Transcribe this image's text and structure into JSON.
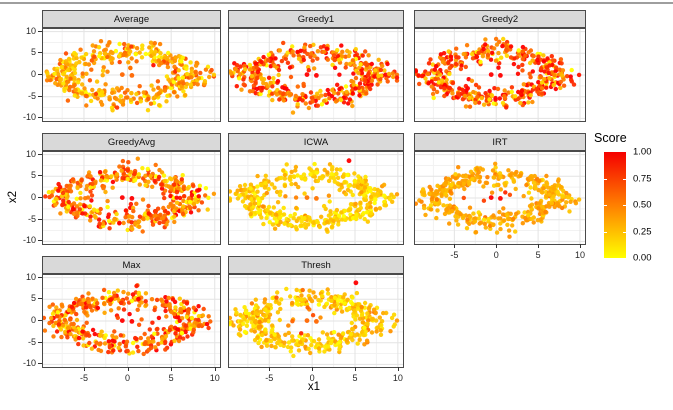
{
  "chart_data": {
    "type": "scatter",
    "faceted": true,
    "description": "Eight faceted scatter plots of an elliptical ring point cloud centered at the origin, points colored by Score (yellow=0 to red=1), ggplot2 style with grey facet strips",
    "facet_labels": [
      "Average",
      "Greedy1",
      "Greedy2",
      "GreedyAvg",
      "ICWA",
      "IRT",
      "Max",
      "Thresh"
    ],
    "x": {
      "label": "x1",
      "domain": [
        -9.7,
        10.6
      ],
      "ticks": [
        -5,
        0,
        5,
        10
      ],
      "minor_ticks": [
        -7.5,
        -2.5,
        2.5,
        7.5
      ]
    },
    "y": {
      "label": "x2",
      "domain": [
        -10.6,
        10.6
      ],
      "ticks": [
        10,
        5,
        0,
        -5,
        -10
      ],
      "minor_ticks": [
        7.5,
        2.5,
        -2.5,
        -7.5
      ]
    },
    "legend": {
      "title": "Score",
      "tick_labels": [
        "1.00",
        "0.75",
        "0.50",
        "0.25",
        "0.00"
      ],
      "tick_values": [
        1.0,
        0.75,
        0.5,
        0.25,
        0.0
      ],
      "high_color": "#ff0000",
      "low_color": "#ffff00",
      "position": "right"
    },
    "point_cloud": {
      "shape": "elliptical-ring",
      "center": [
        0,
        0
      ],
      "radius_x": 7.2,
      "radius_y": 5.3,
      "noise_sigma": 1.35,
      "points_per_facet": 430,
      "inner_sparse_points": 7,
      "center_pair": [
        [
          -0.6,
          0.1
        ],
        [
          0.5,
          -0.1
        ]
      ],
      "point_radius_px": 2.2
    },
    "facets": [
      {
        "label": "Average",
        "seed": 11,
        "score_mean": 0.22,
        "score_spread": 0.2,
        "edge_bias": 0.5,
        "center_score": 0.6
      },
      {
        "label": "Greedy1",
        "seed": 22,
        "score_mean": 0.58,
        "score_spread": 0.32,
        "edge_bias": 0.15,
        "center_score": 1.0
      },
      {
        "label": "Greedy2",
        "seed": 33,
        "score_mean": 0.58,
        "score_spread": 0.32,
        "edge_bias": 0.15,
        "center_score": 1.0
      },
      {
        "label": "GreedyAvg",
        "seed": 44,
        "score_mean": 0.42,
        "score_spread": 0.3,
        "edge_bias": 0.3,
        "center_score": 1.0
      },
      {
        "label": "ICWA",
        "seed": 55,
        "score_mean": 0.15,
        "score_spread": 0.1,
        "edge_bias": 0.15,
        "center_score": 0.55,
        "outlier": {
          "x": 4.3,
          "y": 8.6,
          "score": 1.0
        }
      },
      {
        "label": "IRT",
        "seed": 66,
        "score_mean": 0.3,
        "score_spread": 0.09,
        "edge_bias": 0.1,
        "center_score": 1.0
      },
      {
        "label": "Max",
        "seed": 77,
        "score_mean": 0.48,
        "score_spread": 0.3,
        "edge_bias": 0.25,
        "center_score": 1.0
      },
      {
        "label": "Thresh",
        "seed": 88,
        "score_mean": 0.2,
        "score_spread": 0.13,
        "edge_bias": 0.15,
        "center_score": 0.6,
        "outlier": {
          "x": 5.1,
          "y": 8.8,
          "score": 1.0
        }
      }
    ],
    "style_colors": {
      "strip_fill": "#d9d9d9",
      "panel_border": "#4a4a4a",
      "grid_major": "#e3e3e3",
      "grid_minor": "#f2f2f2",
      "tick_text": "#262626",
      "top_rule": "#9e9e9e"
    }
  }
}
